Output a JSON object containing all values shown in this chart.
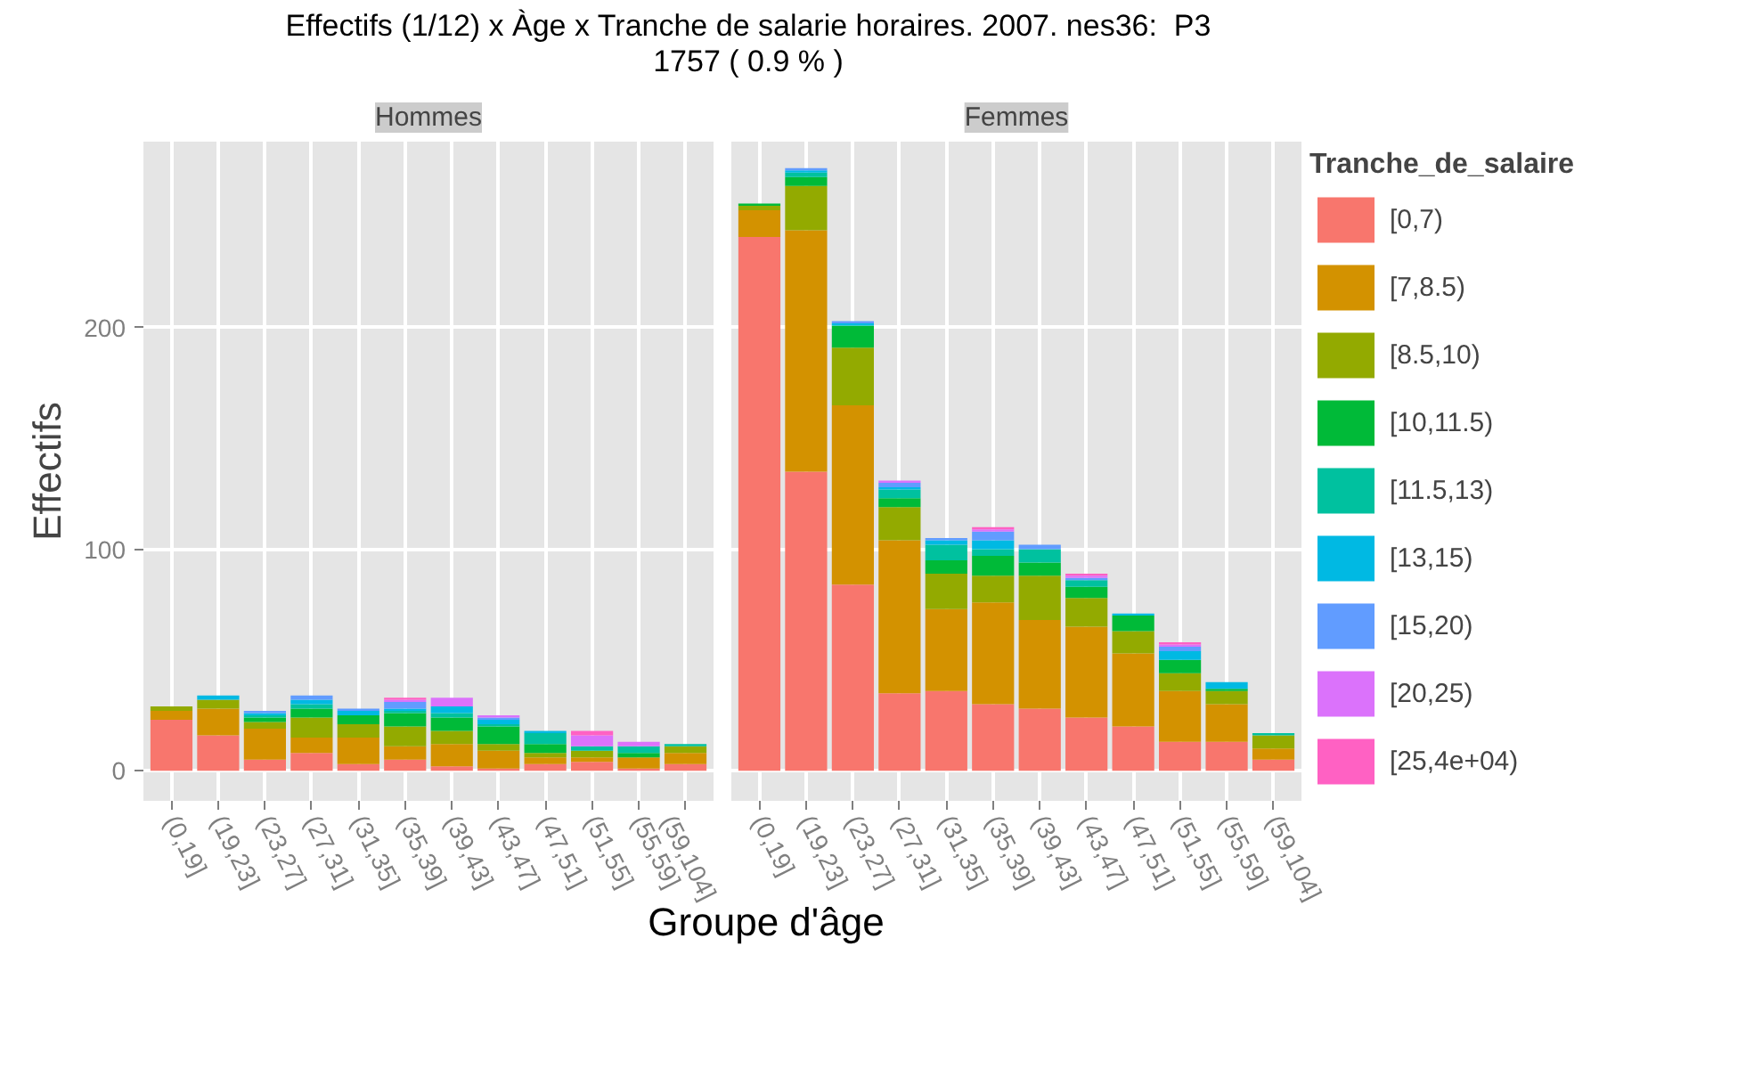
{
  "chart_data": [
    {
      "type": "bar",
      "stacked": true,
      "title": "Effectifs (1/12) x Àge x Tranche de salarie horaires. 2007. nes36:  P3\n1757 ( 0.9 % )",
      "subtitle": "Hommes",
      "xlabel": "Groupe d'âge",
      "ylabel": "Effectifs",
      "categories": [
        "(0,19]",
        "(19,23]",
        "(23,27]",
        "(27,31]",
        "(31,35]",
        "(35,39]",
        "(39,43]",
        "(43,47]",
        "(47,51]",
        "(51,55]",
        "(55,59]",
        "(59,104]"
      ],
      "ylim": [
        -13.6,
        284
      ],
      "yticks": [
        0,
        100,
        200
      ],
      "grid": true,
      "series": [
        {
          "color": "#f8766d",
          "values": [
            23,
            16,
            5,
            8,
            3,
            5,
            2,
            1,
            3,
            4,
            1,
            3
          ]
        },
        {
          "color": "#d39200",
          "values": [
            4,
            12,
            14,
            7,
            12,
            6,
            10,
            8,
            3,
            2,
            5,
            5
          ]
        },
        {
          "color": "#93aa00",
          "values": [
            2,
            4,
            3,
            9,
            6,
            9,
            6,
            3,
            2,
            3,
            0,
            3
          ]
        },
        {
          "color": "#00ba38",
          "values": [
            0,
            0,
            2,
            4,
            4,
            6,
            6,
            8,
            4,
            0,
            2,
            0
          ]
        },
        {
          "color": "#00c19f",
          "values": [
            0,
            0,
            1,
            2,
            0,
            1,
            2,
            1,
            5,
            2,
            3,
            1
          ]
        },
        {
          "color": "#00b9e3",
          "values": [
            0,
            2,
            1,
            2,
            2,
            1,
            3,
            2,
            1,
            0,
            0,
            0
          ]
        },
        {
          "color": "#619cff",
          "values": [
            0,
            0,
            1,
            2,
            1,
            3,
            0,
            1,
            0,
            0,
            0,
            0
          ]
        },
        {
          "color": "#db72fb",
          "values": [
            0,
            0,
            0,
            0,
            0,
            1,
            4,
            1,
            0,
            5,
            2,
            0
          ]
        },
        {
          "color": "#ff61c3",
          "values": [
            0,
            0,
            0,
            0,
            0,
            1,
            0,
            0,
            0,
            2,
            0,
            0
          ]
        }
      ]
    },
    {
      "type": "bar",
      "stacked": true,
      "subtitle": "Femmes",
      "legend_title": "Tranche_de_salaire",
      "tick_labels": "x",
      "categories": [
        "(0,19]",
        "(19,23]",
        "(23,27]",
        "(27,31]",
        "(31,35]",
        "(35,39]",
        "(39,43]",
        "(43,47]",
        "(47,51]",
        "(51,55]",
        "(55,59]",
        "(59,104]"
      ],
      "ylim": [
        -13.6,
        284
      ],
      "yticks": [
        0,
        100,
        200
      ],
      "grid": true,
      "legend": "right",
      "series": [
        {
          "name": "[0,7)",
          "color": "#f8766d",
          "values": [
            241,
            135,
            84,
            35,
            36,
            30,
            28,
            24,
            20,
            13,
            13,
            5
          ]
        },
        {
          "name": "[7,8.5)",
          "color": "#d39200",
          "values": [
            12,
            109,
            81,
            69,
            37,
            46,
            40,
            41,
            33,
            23,
            17,
            5
          ]
        },
        {
          "name": "[8.5,10)",
          "color": "#93aa00",
          "values": [
            2,
            20,
            26,
            15,
            16,
            12,
            20,
            13,
            10,
            8,
            6,
            6
          ]
        },
        {
          "name": "[10,11.5)",
          "color": "#00ba38",
          "values": [
            1,
            4,
            10,
            4,
            6,
            9,
            6,
            5,
            7,
            6,
            1,
            0
          ]
        },
        {
          "name": "[11.5,13)",
          "color": "#00c19f",
          "values": [
            0,
            2,
            0,
            4,
            7,
            3,
            6,
            3,
            0,
            0,
            0,
            1
          ]
        },
        {
          "name": "[13,15)",
          "color": "#00b9e3",
          "values": [
            0,
            1,
            1,
            1,
            2,
            4,
            0,
            0,
            1,
            4,
            3,
            0
          ]
        },
        {
          "name": "[15,20)",
          "color": "#619cff",
          "values": [
            0,
            1,
            1,
            2,
            1,
            4,
            2,
            1,
            0,
            2,
            0,
            0
          ]
        },
        {
          "name": "[20,25)",
          "color": "#db72fb",
          "values": [
            0,
            0,
            0,
            1,
            0,
            1,
            0,
            1,
            0,
            1,
            0,
            0
          ]
        },
        {
          "name": "[25,4e+04)",
          "color": "#ff61c3",
          "values": [
            0,
            0,
            0,
            0,
            0,
            1,
            0,
            1,
            0,
            1,
            0,
            0
          ]
        }
      ]
    }
  ]
}
